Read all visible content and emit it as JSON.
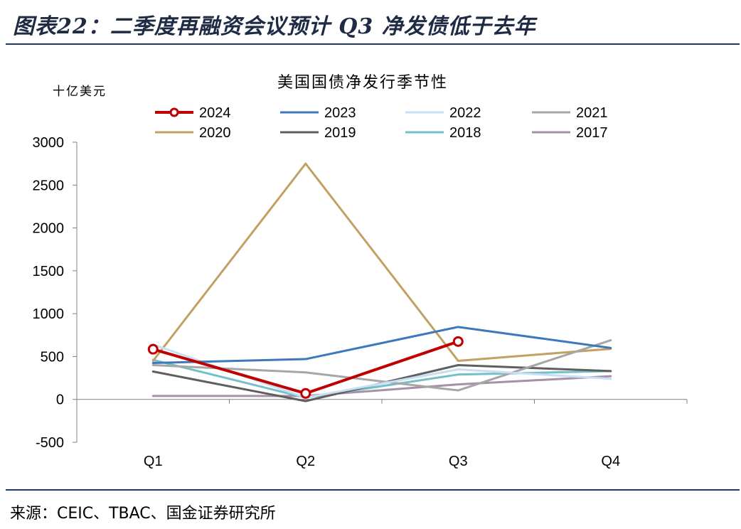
{
  "figure": {
    "title": "图表22：二季度再融资会议预计 Q3 净发债低于去年",
    "source": "来源：CEIC、TBAC、国金证券研究所"
  },
  "chart_data": {
    "type": "line",
    "title": "美国国债净发行季节性",
    "ylabel": "十亿美元",
    "xlabel": "",
    "categories": [
      "Q1",
      "Q2",
      "Q3",
      "Q4"
    ],
    "ylim": [
      -500,
      3000
    ],
    "yticks": [
      -500,
      0,
      500,
      1000,
      1500,
      2000,
      2500,
      3000
    ],
    "legend": "top",
    "series": [
      {
        "name": "2024",
        "color": "#c00000",
        "marker": "circle",
        "values": [
          585,
          70,
          675,
          null
        ]
      },
      {
        "name": "2023",
        "color": "#3e78bc",
        "values": [
          425,
          470,
          845,
          600
        ]
      },
      {
        "name": "2022",
        "color": "#c8dff2",
        "values": [
          640,
          20,
          350,
          240
        ]
      },
      {
        "name": "2021",
        "color": "#a6a6a6",
        "values": [
          400,
          315,
          105,
          690
        ]
      },
      {
        "name": "2020",
        "color": "#c3a064",
        "values": [
          450,
          2750,
          450,
          590
        ]
      },
      {
        "name": "2019",
        "color": "#5f5f5f",
        "values": [
          325,
          -20,
          400,
          330
        ]
      },
      {
        "name": "2018",
        "color": "#73c0c8",
        "values": [
          460,
          20,
          290,
          330
        ]
      },
      {
        "name": "2017",
        "color": "#a690a8",
        "values": [
          40,
          40,
          175,
          270
        ]
      }
    ]
  }
}
